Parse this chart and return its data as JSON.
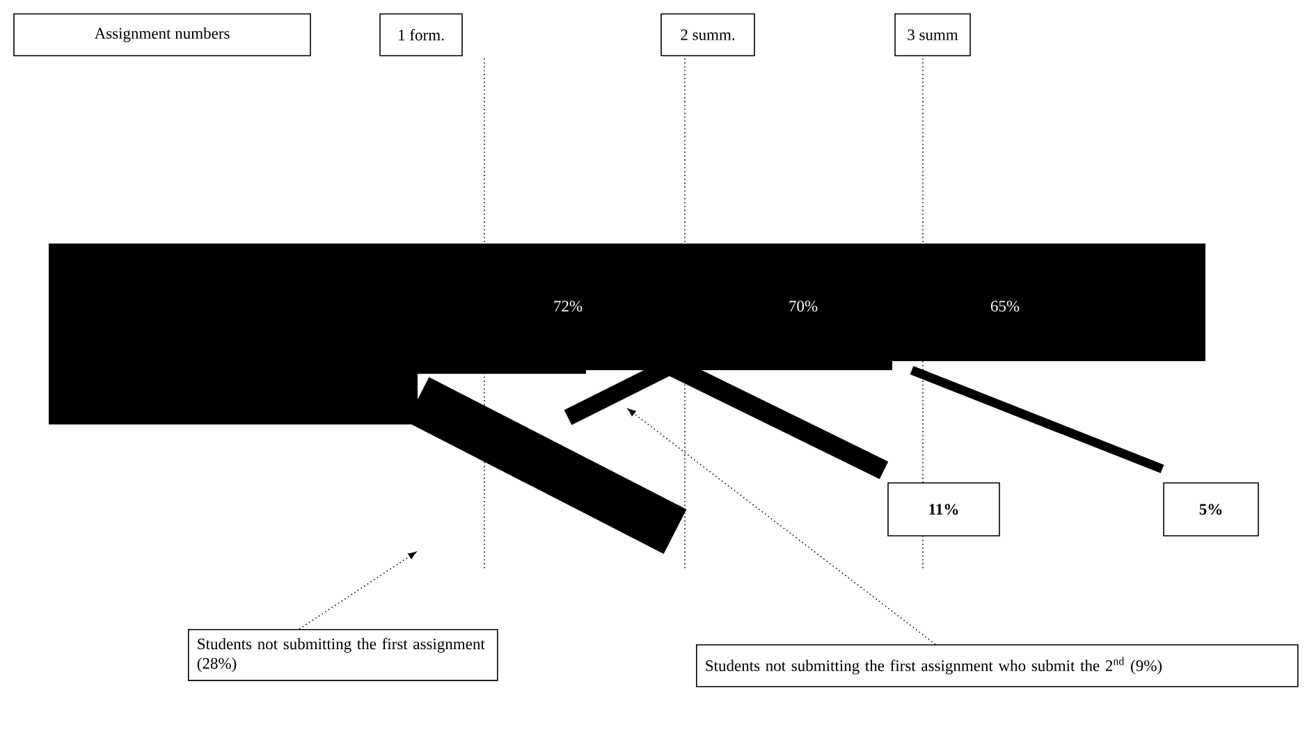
{
  "chart_data": {
    "type": "other",
    "xlabel": "Assignment numbers",
    "categories": [
      "1 form.",
      "2 summ.",
      "3 summ"
    ],
    "values": [
      72,
      70,
      65
    ],
    "value_labels": [
      "72%",
      "70%",
      "65%"
    ],
    "color": "#000000",
    "annotations": [
      "Students not submitting the first assignment (28%)",
      "Students not submitting the first assignment who submit the 2$^{nd}$ (9%)",
      "11%",
      "5%"
    ]
  }
}
